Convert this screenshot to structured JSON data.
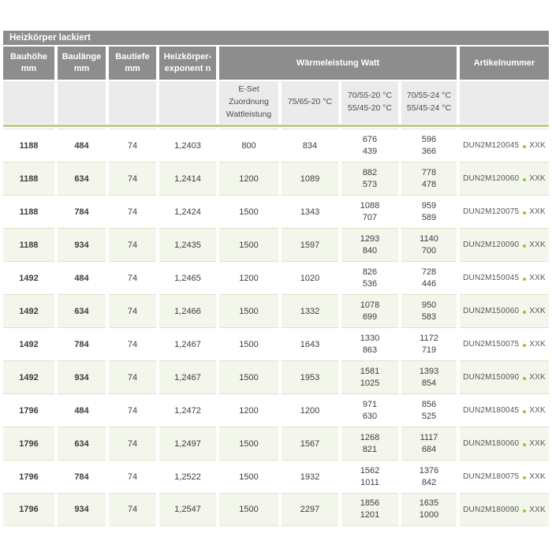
{
  "colors": {
    "header_bg": "#8d8d8d",
    "header_text": "#ffffff",
    "subheader_bg": "#ebebeb",
    "subheader_text": "#4c4c4c",
    "row_alt_bg": "#f3f6ea",
    "row_separator": "#dce4c8",
    "accent_line": "#b9cc8e",
    "accent_dot": "#9ec131",
    "data_text": "#3d3d3d"
  },
  "title_bar": {
    "label": "Heizkörper lackiert"
  },
  "table": {
    "header": {
      "cols": [
        {
          "line1": "Bauhöhe",
          "line2": "mm"
        },
        {
          "line1": "Baulänge",
          "line2": "mm"
        },
        {
          "line1": "Bautiefe",
          "line2": "mm"
        },
        {
          "line1": "Heizkörper-",
          "line2": "exponent n"
        }
      ],
      "group_label": "Wärmeleistung Watt",
      "artikelnummer_label": "Artikelnummer",
      "subcols": [
        {
          "lines": [
            "E-Set",
            "Zuordnung",
            "Wattleistung"
          ]
        },
        {
          "lines": [
            "75/65-20 °C"
          ]
        },
        {
          "lines": [
            "70/55-20 °C",
            "55/45-20 °C"
          ]
        },
        {
          "lines": [
            "70/55-24 °C",
            "55/45-24 °C"
          ]
        }
      ]
    },
    "rows": [
      {
        "bauhoehe": "1188",
        "baulaenge": "484",
        "bautiefe": "74",
        "exponent_n": "1,2403",
        "eset_watt": "800",
        "watt_7565_20": "834",
        "watt_7055_20": [
          "676",
          "439"
        ],
        "watt_7055_24": [
          "596",
          "366"
        ],
        "artikelnummer": "DUN2M120045",
        "artikel_suffix": "XXK"
      },
      {
        "bauhoehe": "1188",
        "baulaenge": "634",
        "bautiefe": "74",
        "exponent_n": "1,2414",
        "eset_watt": "1200",
        "watt_7565_20": "1089",
        "watt_7055_20": [
          "882",
          "573"
        ],
        "watt_7055_24": [
          "778",
          "478"
        ],
        "artikelnummer": "DUN2M120060",
        "artikel_suffix": "XXK"
      },
      {
        "bauhoehe": "1188",
        "baulaenge": "784",
        "bautiefe": "74",
        "exponent_n": "1,2424",
        "eset_watt": "1500",
        "watt_7565_20": "1343",
        "watt_7055_20": [
          "1088",
          "707"
        ],
        "watt_7055_24": [
          "959",
          "589"
        ],
        "artikelnummer": "DUN2M120075",
        "artikel_suffix": "XXK"
      },
      {
        "bauhoehe": "1188",
        "baulaenge": "934",
        "bautiefe": "74",
        "exponent_n": "1,2435",
        "eset_watt": "1500",
        "watt_7565_20": "1597",
        "watt_7055_20": [
          "1293",
          "840"
        ],
        "watt_7055_24": [
          "1140",
          "700"
        ],
        "artikelnummer": "DUN2M120090",
        "artikel_suffix": "XXK"
      },
      {
        "bauhoehe": "1492",
        "baulaenge": "484",
        "bautiefe": "74",
        "exponent_n": "1,2465",
        "eset_watt": "1200",
        "watt_7565_20": "1020",
        "watt_7055_20": [
          "826",
          "536"
        ],
        "watt_7055_24": [
          "728",
          "446"
        ],
        "artikelnummer": "DUN2M150045",
        "artikel_suffix": "XXK"
      },
      {
        "bauhoehe": "1492",
        "baulaenge": "634",
        "bautiefe": "74",
        "exponent_n": "1,2466",
        "eset_watt": "1500",
        "watt_7565_20": "1332",
        "watt_7055_20": [
          "1078",
          "699"
        ],
        "watt_7055_24": [
          "950",
          "583"
        ],
        "artikelnummer": "DUN2M150060",
        "artikel_suffix": "XXK"
      },
      {
        "bauhoehe": "1492",
        "baulaenge": "784",
        "bautiefe": "74",
        "exponent_n": "1,2467",
        "eset_watt": "1500",
        "watt_7565_20": "1643",
        "watt_7055_20": [
          "1330",
          "863"
        ],
        "watt_7055_24": [
          "1172",
          "719"
        ],
        "artikelnummer": "DUN2M150075",
        "artikel_suffix": "XXK"
      },
      {
        "bauhoehe": "1492",
        "baulaenge": "934",
        "bautiefe": "74",
        "exponent_n": "1,2467",
        "eset_watt": "1500",
        "watt_7565_20": "1953",
        "watt_7055_20": [
          "1581",
          "1025"
        ],
        "watt_7055_24": [
          "1393",
          "854"
        ],
        "artikelnummer": "DUN2M150090",
        "artikel_suffix": "XXK"
      },
      {
        "bauhoehe": "1796",
        "baulaenge": "484",
        "bautiefe": "74",
        "exponent_n": "1,2472",
        "eset_watt": "1200",
        "watt_7565_20": "1200",
        "watt_7055_20": [
          "971",
          "630"
        ],
        "watt_7055_24": [
          "856",
          "525"
        ],
        "artikelnummer": "DUN2M180045",
        "artikel_suffix": "XXK"
      },
      {
        "bauhoehe": "1796",
        "baulaenge": "634",
        "bautiefe": "74",
        "exponent_n": "1,2497",
        "eset_watt": "1500",
        "watt_7565_20": "1567",
        "watt_7055_20": [
          "1268",
          "821"
        ],
        "watt_7055_24": [
          "1117",
          "684"
        ],
        "artikelnummer": "DUN2M180060",
        "artikel_suffix": "XXK"
      },
      {
        "bauhoehe": "1796",
        "baulaenge": "784",
        "bautiefe": "74",
        "exponent_n": "1,2522",
        "eset_watt": "1500",
        "watt_7565_20": "1932",
        "watt_7055_20": [
          "1562",
          "1011"
        ],
        "watt_7055_24": [
          "1376",
          "842"
        ],
        "artikelnummer": "DUN2M180075",
        "artikel_suffix": "XXK"
      },
      {
        "bauhoehe": "1796",
        "baulaenge": "934",
        "bautiefe": "74",
        "exponent_n": "1,2547",
        "eset_watt": "1500",
        "watt_7565_20": "2297",
        "watt_7055_20": [
          "1856",
          "1201"
        ],
        "watt_7055_24": [
          "1635",
          "1000"
        ],
        "artikelnummer": "DUN2M180090",
        "artikel_suffix": "XXK"
      }
    ]
  }
}
